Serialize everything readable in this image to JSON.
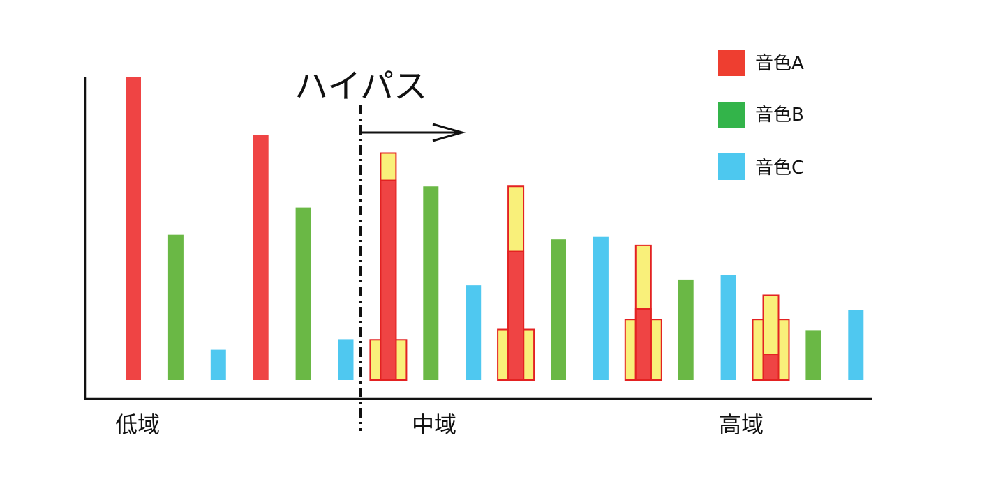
{
  "highpass_label": "ハイパス",
  "bands": {
    "low": "低域",
    "mid": "中域",
    "high": "高域"
  },
  "legend": [
    {
      "label": "音色A",
      "color": "#ee3e30"
    },
    {
      "label": "音色B",
      "color": "#33b44a"
    },
    {
      "label": "音色C",
      "color": "#4dc8ef"
    }
  ],
  "colors": {
    "A": "#ef4444",
    "B": "#6ab845",
    "C": "#4fc8f0",
    "boost": "#f9f07a",
    "boost_outline": "#e32222"
  },
  "bars": [
    {
      "timbre": "A",
      "value": 100
    },
    {
      "timbre": "B",
      "value": 48
    },
    {
      "timbre": "C",
      "value": 10
    },
    {
      "timbre": "A",
      "value": 81
    },
    {
      "timbre": "B",
      "value": 57
    },
    {
      "timbre": "C",
      "value": 13.5
    },
    {
      "timbre": "A",
      "value": 66,
      "boost": 75,
      "side_boost": 13.3
    },
    {
      "timbre": "B",
      "value": 64
    },
    {
      "timbre": "C",
      "value": 31.3
    },
    {
      "timbre": "A",
      "value": 42.5,
      "boost": 64,
      "side_boost": 16.7
    },
    {
      "timbre": "B",
      "value": 46.5
    },
    {
      "timbre": "C",
      "value": 47.3
    },
    {
      "timbre": "A",
      "value": 23.5,
      "boost": 44.5,
      "side_boost": 20
    },
    {
      "timbre": "B",
      "value": 33.2
    },
    {
      "timbre": "C",
      "value": 34.6
    },
    {
      "timbre": "A",
      "value": 8.5,
      "boost": 28,
      "side_boost": 20
    },
    {
      "timbre": "B",
      "value": 16.5
    },
    {
      "timbre": "C",
      "value": 23.2
    }
  ]
}
